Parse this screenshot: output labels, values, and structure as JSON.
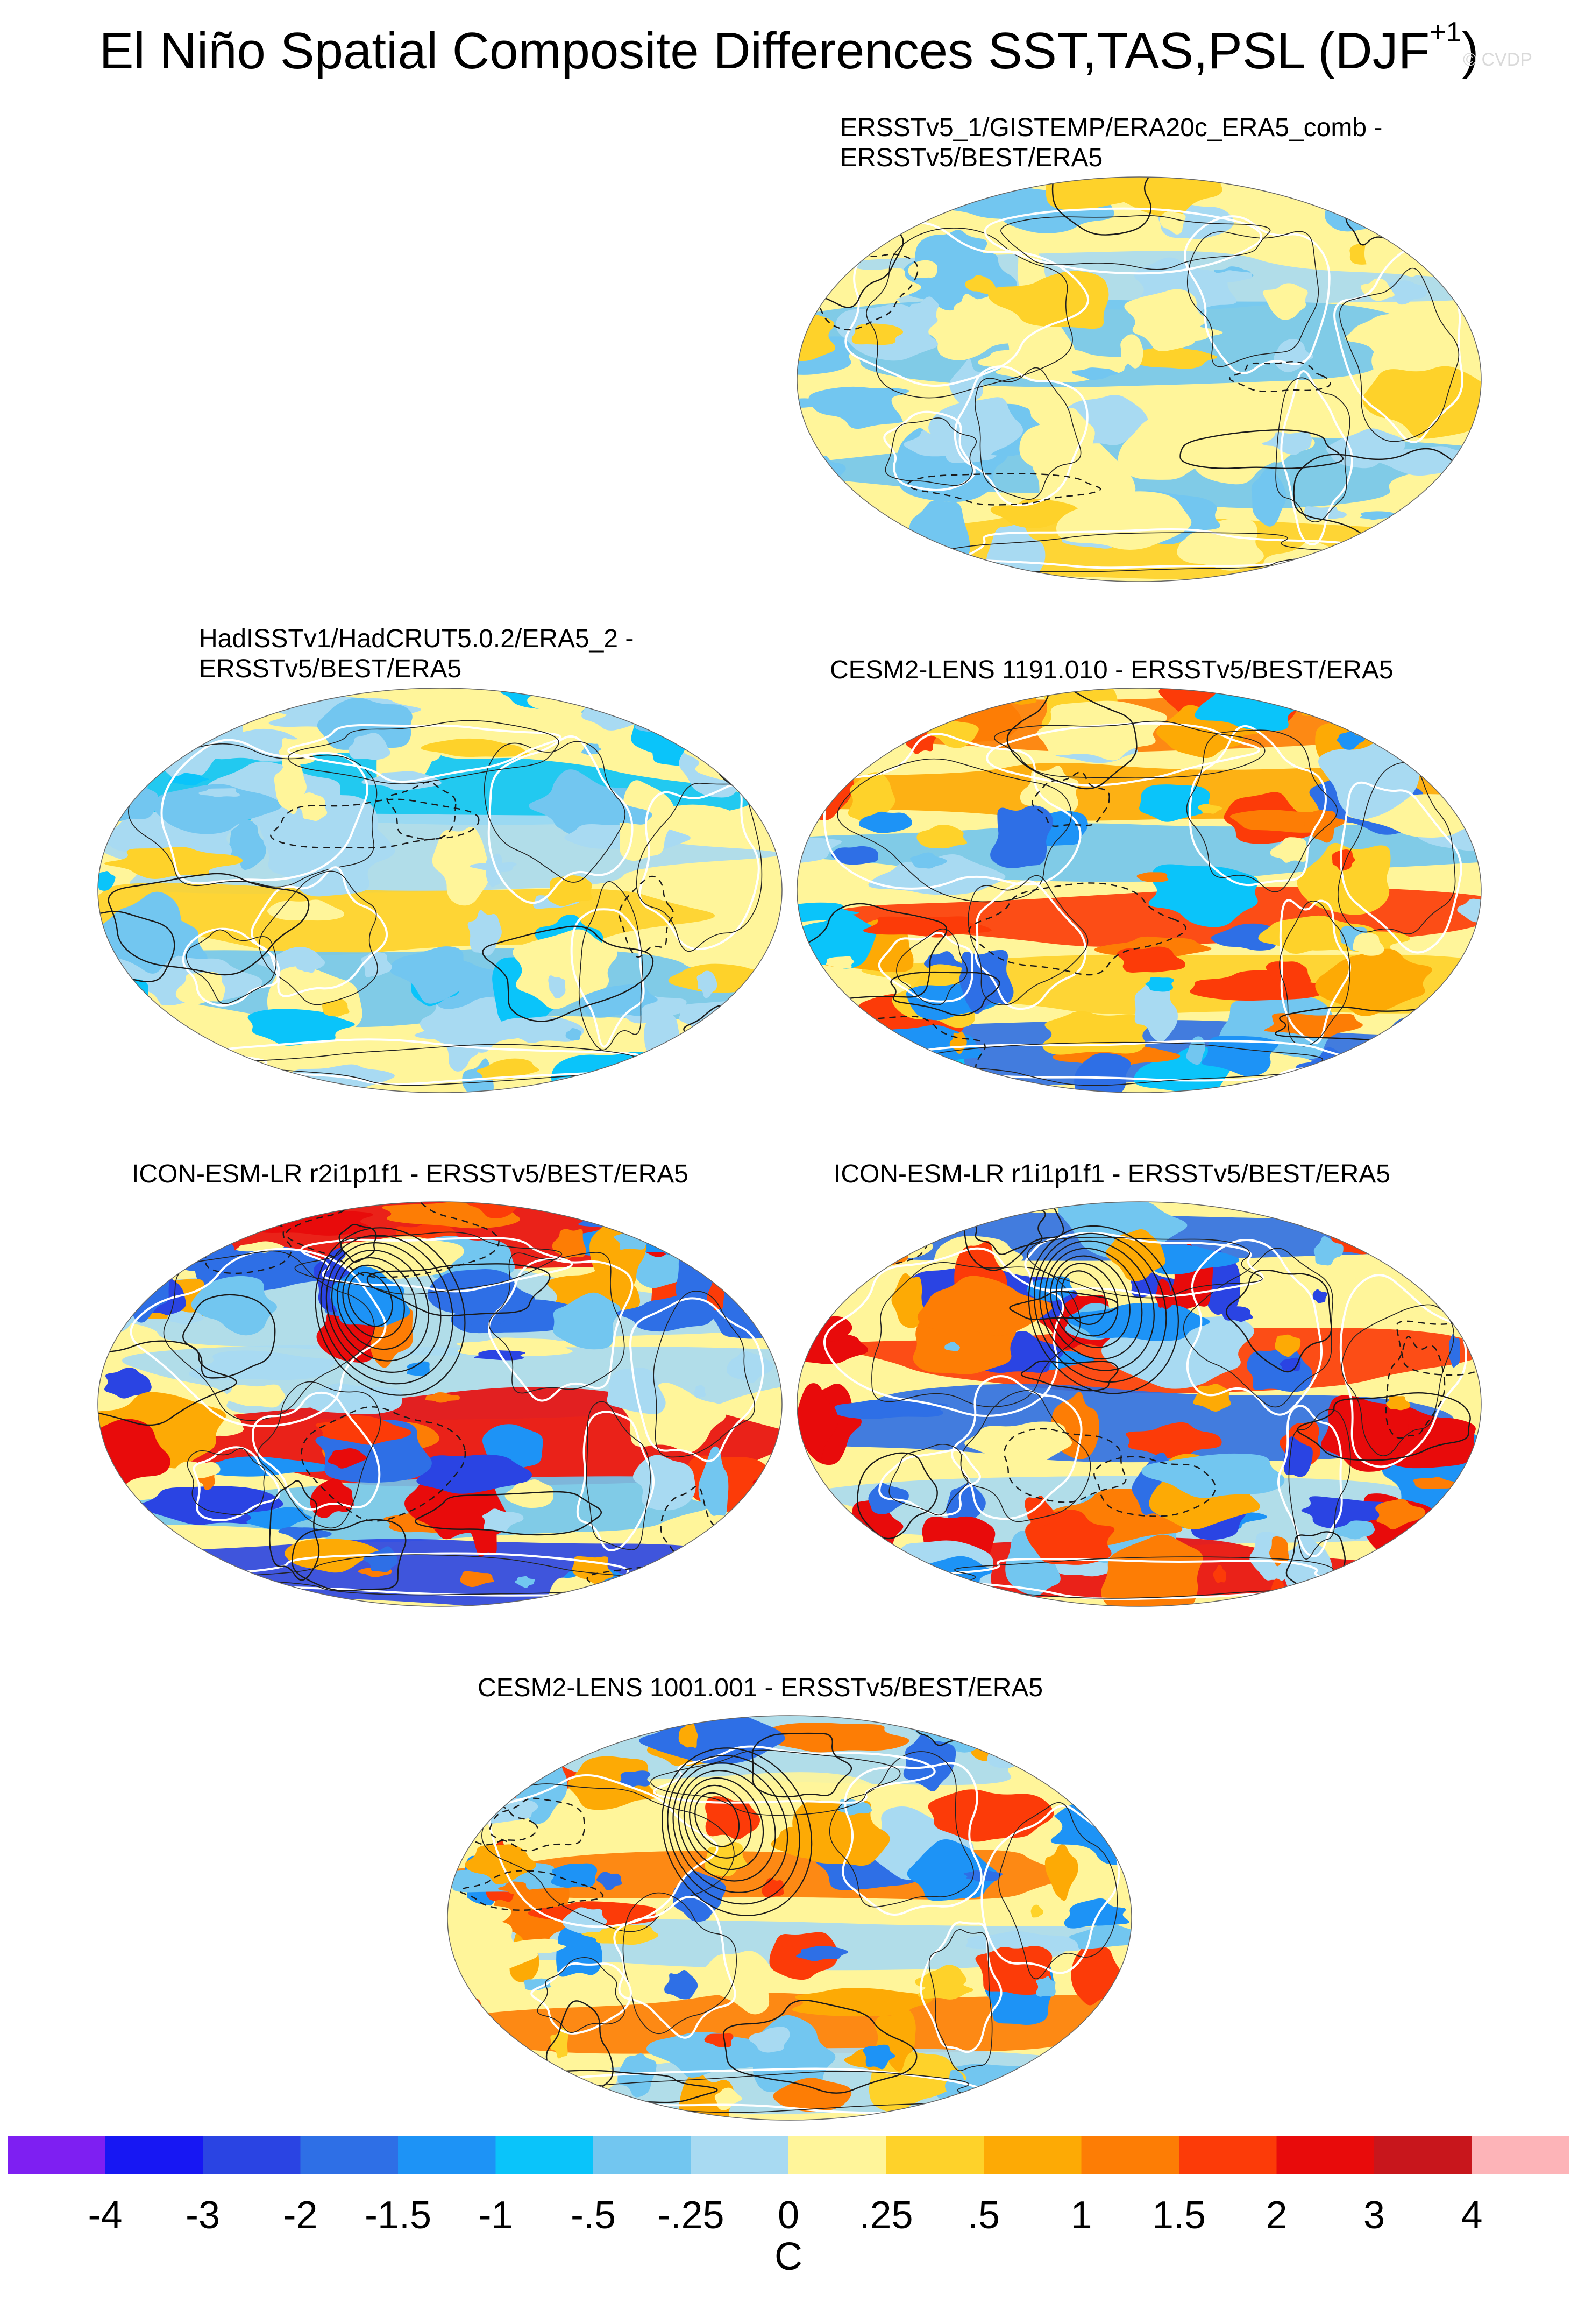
{
  "figure": {
    "title": "El Niño Spatial Composite Differences SST,TAS,PSL (DJF",
    "title_superscript": "+1",
    "title_close": ")",
    "watermark": "© CVDP"
  },
  "panels": [
    {
      "id": "p1",
      "title_line1": "ERSSTv5_1/GISTEMP/ERA20c_ERA5_comb -",
      "title_line2": "ERSSTv5/BEST/ERA5",
      "pattern": "weak-mixed",
      "seed": 11
    },
    {
      "id": "p2",
      "title_line1": "HadISSTv1/HadCRUT5.0.2/ERA5_2 -",
      "title_line2": "ERSSTv5/BEST/ERA5",
      "pattern": "weak-cool",
      "seed": 23
    },
    {
      "id": "p3",
      "title_line1": "CESM2-LENS 1191.010 - ERSSTv5/BEST/ERA5",
      "title_line2": "",
      "pattern": "moderate",
      "seed": 37
    },
    {
      "id": "p4",
      "title_line1": "ICON-ESM-LR r2i1p1f1 - ERSSTv5/BEST/ERA5",
      "title_line2": "",
      "pattern": "strong",
      "seed": 41
    },
    {
      "id": "p5",
      "title_line1": "ICON-ESM-LR r1i1p1f1 - ERSSTv5/BEST/ERA5",
      "title_line2": "",
      "pattern": "strong",
      "seed": 53
    },
    {
      "id": "p6",
      "title_line1": "CESM2-LENS 1001.001 - ERSSTv5/BEST/ERA5",
      "title_line2": "",
      "pattern": "enso-warm",
      "seed": 67
    }
  ],
  "colorbar": {
    "units": "C",
    "labels": [
      "-4",
      "-3",
      "-2",
      "-1.5",
      "-1",
      "-.5",
      "-.25",
      "0",
      ".25",
      ".5",
      "1",
      "1.5",
      "2",
      "3",
      "4"
    ],
    "colors": [
      "#7e1ff2",
      "#1717f3",
      "#2a44e3",
      "#2e6fe6",
      "#1d93f6",
      "#0ac4fa",
      "#72c6f0",
      "#a8daf2",
      "#fff59a",
      "#fed22a",
      "#fdaa05",
      "#fd7d05",
      "#fc3b08",
      "#e80b0b",
      "#c8161c",
      "#fdb4b8"
    ]
  }
}
